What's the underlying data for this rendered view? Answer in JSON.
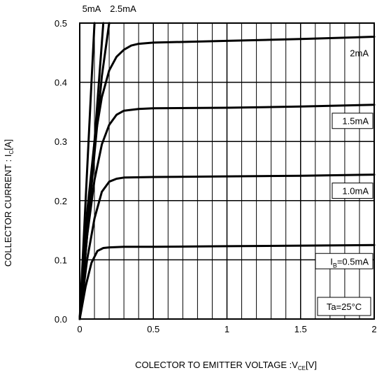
{
  "chart_data": {
    "type": "line",
    "ylabel": "COLLECTOR CURRENT : I",
    "ylabel_sub": "C",
    "ylabel_tail": "[A]",
    "xlabel": "COLECTOR TO EMITTER VOLTAGE :V",
    "xlabel_sub": "CE",
    "xlabel_tail": "[V]",
    "xlim": [
      0,
      2
    ],
    "ylim": [
      0,
      0.5
    ],
    "x_ticks": [
      0,
      0.5,
      1,
      1.5,
      2
    ],
    "x_tick_labels": [
      "0",
      "0.5",
      "1",
      "1.5",
      "2"
    ],
    "y_ticks": [
      0,
      0.1,
      0.2,
      0.3,
      0.4,
      0.5
    ],
    "y_tick_labels": [
      "0.0",
      "0.1",
      "0.2",
      "0.3",
      "0.4",
      "0.5"
    ],
    "grid": true,
    "annotation": "Ta=25°C",
    "series": [
      {
        "name": "IB=0.5mA",
        "label_main": "I",
        "label_sub": "B",
        "label_tail": "=0.5mA",
        "label_boxed": true,
        "x": [
          0,
          0.04,
          0.08,
          0.12,
          0.16,
          0.2,
          0.3,
          0.5,
          1.0,
          1.5,
          2.0
        ],
        "y": [
          0,
          0.055,
          0.095,
          0.115,
          0.12,
          0.121,
          0.122,
          0.122,
          0.123,
          0.124,
          0.125
        ]
      },
      {
        "name": "1.0mA",
        "label_main": "1.0mA",
        "label_boxed": true,
        "x": [
          0,
          0.05,
          0.1,
          0.15,
          0.2,
          0.25,
          0.3,
          0.5,
          1.0,
          1.5,
          2.0
        ],
        "y": [
          0,
          0.1,
          0.17,
          0.215,
          0.232,
          0.237,
          0.239,
          0.24,
          0.241,
          0.242,
          0.244
        ]
      },
      {
        "name": "1.5mA",
        "label_main": "1.5mA",
        "label_boxed": true,
        "x": [
          0,
          0.05,
          0.1,
          0.15,
          0.2,
          0.25,
          0.3,
          0.4,
          0.5,
          1.0,
          1.5,
          2.0
        ],
        "y": [
          0,
          0.14,
          0.235,
          0.295,
          0.328,
          0.345,
          0.352,
          0.355,
          0.356,
          0.357,
          0.359,
          0.362
        ]
      },
      {
        "name": "2mA",
        "label_main": "2mA",
        "label_boxed": false,
        "x": [
          0,
          0.05,
          0.1,
          0.15,
          0.2,
          0.25,
          0.3,
          0.35,
          0.4,
          0.5,
          1.0,
          1.5,
          2.0
        ],
        "y": [
          0,
          0.18,
          0.3,
          0.375,
          0.42,
          0.443,
          0.455,
          0.462,
          0.465,
          0.467,
          0.47,
          0.473,
          0.477
        ]
      },
      {
        "name": "2.5mA",
        "label_main": "2.5mA",
        "label_boxed": false,
        "x": [
          0,
          0.05,
          0.1,
          0.15,
          0.2
        ],
        "y": [
          0,
          0.14,
          0.28,
          0.41,
          0.5
        ]
      },
      {
        "name": "5mA",
        "label_main": "5mA",
        "label_boxed": false,
        "x": [
          0,
          0.05,
          0.08,
          0.1
        ],
        "y": [
          0,
          0.25,
          0.4,
          0.5
        ]
      },
      {
        "name": "",
        "x": [
          0,
          0.1,
          0.16
        ],
        "y": [
          0,
          0.3,
          0.5
        ]
      }
    ]
  }
}
